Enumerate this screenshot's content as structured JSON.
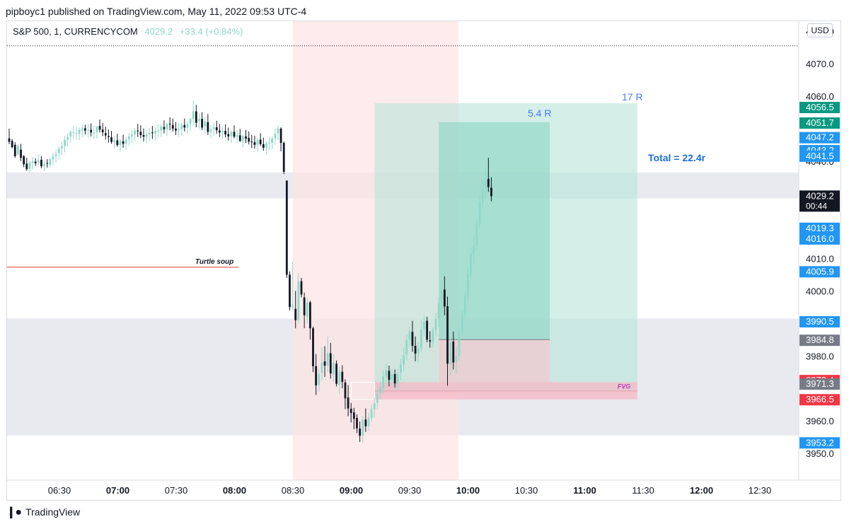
{
  "header": {
    "publish_line": "pipboyc1 published on TradingView.com, May 11, 2022 09:53 UTC-4"
  },
  "symbol": {
    "name": "S&P 500, 1, CURRENCYCOM",
    "price": "4029.2",
    "change": "+33.4 (+0.84%)"
  },
  "currency_button": "USD",
  "footer": {
    "brand": "TradingView"
  },
  "colors": {
    "up": "#26a69a",
    "down": "#131722",
    "session": "#fde4e4",
    "zone": "#e8eaef",
    "profit": "#b7e4d9",
    "profit_dark": "#8fd6c4",
    "loss": "#f4c7cf",
    "accent_blue": "#2962ff",
    "fvg": "#b83ab8"
  },
  "chart_data": {
    "type": "candlestick",
    "title": "S&P 500, 1, CURRENCYCOM",
    "ylim": [
      3945,
      4085
    ],
    "time_ticks": [
      "06:30",
      "07:00",
      "07:30",
      "08:00",
      "08:30",
      "09:00",
      "09:30",
      "10:00",
      "10:30",
      "11:00",
      "11:30",
      "12:00",
      "12:30"
    ],
    "time_ticks_bold": [
      "07:00",
      "08:00",
      "09:00",
      "10:00",
      "11:00",
      "12:00"
    ],
    "price_ticks": [
      3950.0,
      3960.0,
      3970.0,
      3980.0,
      3990.0,
      4000.0,
      4010.0,
      4020.0,
      4030.0,
      4040.0,
      4050.0,
      4060.0,
      4070.0,
      4080.0
    ],
    "price_tick_labels": [
      "3950.0",
      "3960.0",
      "",
      "3980.0",
      "",
      "4000.0",
      "4010.0",
      "",
      "",
      "4040.0",
      "",
      "4060.0",
      "4070.0",
      "4080.0"
    ],
    "price_badges": [
      {
        "label": "4056.5",
        "price": 4056.5,
        "color": "#089981"
      },
      {
        "label": "4051.7",
        "price": 4051.7,
        "color": "#089981"
      },
      {
        "label": "4047.2",
        "price": 4047.2,
        "color": "#2196f3"
      },
      {
        "label": "4043.2",
        "price": 4043.2,
        "color": "#2196f3"
      },
      {
        "label": "4041.5",
        "price": 4041.5,
        "color": "#2196f3"
      },
      {
        "label": "4029.2",
        "price": 4029.2,
        "color": "#131722",
        "sub": "00:44"
      },
      {
        "label": "4019.3",
        "price": 4019.3,
        "color": "#2196f3"
      },
      {
        "label": "4016.0",
        "price": 4016.0,
        "color": "#2196f3"
      },
      {
        "label": "4005.9",
        "price": 4005.9,
        "color": "#2196f3"
      },
      {
        "label": "3990.5",
        "price": 3990.5,
        "color": "#2196f3"
      },
      {
        "label": "3984.8",
        "price": 3984.8,
        "color": "#787b86"
      },
      {
        "label": "3972.4",
        "price": 3972.4,
        "color": "#f23645"
      },
      {
        "label": "3971.3",
        "price": 3971.3,
        "color": "#787b86"
      },
      {
        "label": "3966.5",
        "price": 3966.5,
        "color": "#f23645"
      },
      {
        "label": "3953.2",
        "price": 3953.2,
        "color": "#2196f3"
      }
    ],
    "dotted_line_price": 4075.5,
    "zones": [
      {
        "top": 4036.5,
        "bottom": 4028.5
      },
      {
        "top": 3991.5,
        "bottom": 3955.5
      }
    ],
    "session_range": {
      "from": "08:30",
      "to": "09:55"
    },
    "annotations": {
      "turtle_soup": {
        "label": "Turtle soup",
        "price": 4007.3,
        "from": "06:00",
        "to": "08:03"
      },
      "fvg": {
        "label": "FVG",
        "top": 3971.9,
        "bottom": 3966.6
      },
      "r17": "17 R",
      "r54": "5.4 R",
      "total": "Total = 22.4r"
    },
    "long_positions": [
      {
        "entry": 3969.2,
        "target": 4057.8,
        "stop": 3968.6,
        "from": "09:12",
        "to": "11:27",
        "label": "17 R"
      },
      {
        "entry": 3985.0,
        "target": 4052.0,
        "stop": 3971.7,
        "from": "09:45",
        "to": "10:42",
        "label": "5.4 R"
      }
    ],
    "candles": [
      [
        4047.0,
        4050.0,
        4045.2,
        4045.9
      ],
      [
        4046.2,
        4046.8,
        4043.9,
        4044.3
      ],
      [
        4045.0,
        4045.8,
        4041.0,
        4041.5
      ],
      [
        4042.0,
        4045.2,
        4041.8,
        4044.6
      ],
      [
        4043.5,
        4045.3,
        4040.0,
        4041.0
      ],
      [
        4041.5,
        4041.9,
        4038.1,
        4039.0
      ],
      [
        4039.2,
        4041.0,
        4037.0,
        4037.5
      ],
      [
        4037.6,
        4040.1,
        4036.3,
        4039.6
      ],
      [
        4039.4,
        4041.3,
        4037.4,
        4040.0
      ],
      [
        4039.8,
        4040.9,
        4038.5,
        4039.3
      ],
      [
        4039.5,
        4042.1,
        4038.7,
        4040.3
      ],
      [
        4040.4,
        4041.5,
        4037.8,
        4038.4
      ],
      [
        4038.4,
        4040.0,
        4036.9,
        4039.1
      ],
      [
        4039.4,
        4040.6,
        4038.0,
        4039.3
      ],
      [
        4038.8,
        4041.1,
        4037.9,
        4040.6
      ],
      [
        4040.6,
        4042.6,
        4038.6,
        4041.5
      ],
      [
        4041.6,
        4043.5,
        4039.6,
        4042.2
      ],
      [
        4042.5,
        4044.5,
        4040.5,
        4043.8
      ],
      [
        4043.9,
        4045.9,
        4041.9,
        4044.6
      ],
      [
        4044.7,
        4047.8,
        4042.7,
        4046.5
      ],
      [
        4046.5,
        4048.5,
        4044.5,
        4047.4
      ],
      [
        4047.6,
        4049.6,
        4045.7,
        4049.0
      ],
      [
        4048.9,
        4050.9,
        4046.8,
        4048.9
      ],
      [
        4048.5,
        4050.5,
        4046.5,
        4048.6
      ],
      [
        4048.4,
        4050.4,
        4046.4,
        4049.6
      ],
      [
        4049.4,
        4051.4,
        4047.4,
        4050.1
      ],
      [
        4050.1,
        4051.2,
        4048.2,
        4049.4
      ],
      [
        4049.4,
        4051.4,
        4047.4,
        4049.5
      ],
      [
        4049.6,
        4051.6,
        4047.6,
        4048.8
      ],
      [
        4048.8,
        4050.8,
        4046.8,
        4048.8
      ],
      [
        4048.9,
        4050.9,
        4046.9,
        4050.6
      ],
      [
        4050.8,
        4052.8,
        4048.8,
        4049.7
      ],
      [
        4049.7,
        4051.7,
        4047.7,
        4048.9
      ],
      [
        4048.6,
        4050.6,
        4046.6,
        4047.9
      ],
      [
        4047.7,
        4049.7,
        4045.7,
        4047.4
      ],
      [
        4047.3,
        4049.3,
        4045.3,
        4045.9
      ],
      [
        4045.8,
        4047.8,
        4043.8,
        4046.4
      ],
      [
        4046.4,
        4048.4,
        4044.4,
        4044.9
      ],
      [
        4044.9,
        4046.9,
        4042.9,
        4046.2
      ],
      [
        4046.1,
        4048.1,
        4044.1,
        4045.3
      ],
      [
        4045.4,
        4047.4,
        4043.4,
        4046.6
      ],
      [
        4046.7,
        4048.7,
        4044.7,
        4047.6
      ],
      [
        4047.6,
        4049.6,
        4045.6,
        4048.2
      ],
      [
        4048.2,
        4050.2,
        4046.2,
        4049.4
      ],
      [
        4049.4,
        4051.4,
        4047.4,
        4049.2
      ],
      [
        4049.0,
        4051.0,
        4047.0,
        4048.0
      ],
      [
        4048.0,
        4050.0,
        4046.0,
        4047.5
      ],
      [
        4047.5,
        4049.5,
        4045.5,
        4048.2
      ],
      [
        4048.2,
        4050.2,
        4046.2,
        4048.7
      ],
      [
        4048.8,
        4050.8,
        4046.8,
        4048.6
      ],
      [
        4048.4,
        4050.4,
        4046.4,
        4049.3
      ],
      [
        4049.4,
        4051.4,
        4047.4,
        4049.4
      ],
      [
        4049.4,
        4051.4,
        4047.4,
        4050.6
      ],
      [
        4050.5,
        4052.5,
        4048.5,
        4049.8
      ],
      [
        4049.7,
        4051.7,
        4047.7,
        4051.5
      ],
      [
        4051.5,
        4053.5,
        4049.5,
        4051.3
      ],
      [
        4051.1,
        4053.1,
        4049.1,
        4050.0
      ],
      [
        4050.0,
        4052.0,
        4048.0,
        4049.4
      ],
      [
        4049.5,
        4051.5,
        4047.5,
        4049.8
      ],
      [
        4049.8,
        4051.8,
        4047.8,
        4051.2
      ],
      [
        4051.1,
        4053.1,
        4049.1,
        4050.3
      ],
      [
        4050.3,
        4052.3,
        4048.3,
        4051.4
      ],
      [
        4051.4,
        4053.4,
        4049.4,
        4053.0
      ],
      [
        4053.0,
        4058.5,
        4051.0,
        4055.3
      ],
      [
        4055.3,
        4057.3,
        4050.4,
        4051.8
      ],
      [
        4052.3,
        4054.6,
        4050.0,
        4053.0
      ],
      [
        4053.0,
        4055.0,
        4049.5,
        4050.3
      ],
      [
        4050.6,
        4053.5,
        4048.5,
        4052.2
      ],
      [
        4052.0,
        4054.5,
        4048.0,
        4049.0
      ],
      [
        4049.0,
        4051.0,
        4047.0,
        4049.8
      ],
      [
        4049.8,
        4051.8,
        4047.8,
        4050.4
      ],
      [
        4050.4,
        4052.4,
        4048.4,
        4049.5
      ],
      [
        4049.4,
        4051.4,
        4047.4,
        4048.8
      ],
      [
        4048.8,
        4050.8,
        4046.8,
        4049.2
      ],
      [
        4049.3,
        4051.3,
        4047.3,
        4048.2
      ],
      [
        4048.3,
        4050.3,
        4046.3,
        4047.6
      ],
      [
        4047.6,
        4049.6,
        4045.6,
        4049.0
      ],
      [
        4049.0,
        4051.0,
        4047.0,
        4047.5
      ],
      [
        4047.5,
        4049.5,
        4045.5,
        4048.0
      ],
      [
        4047.9,
        4049.9,
        4045.9,
        4046.2
      ],
      [
        4046.2,
        4048.2,
        4044.2,
        4047.7
      ],
      [
        4047.6,
        4049.6,
        4045.6,
        4046.9
      ],
      [
        4047.1,
        4049.1,
        4045.1,
        4046.0
      ],
      [
        4046.0,
        4048.0,
        4044.0,
        4045.8
      ],
      [
        4045.8,
        4047.8,
        4043.8,
        4045.0
      ],
      [
        4045.0,
        4047.0,
        4043.0,
        4046.6
      ],
      [
        4046.6,
        4048.6,
        4044.6,
        4045.2
      ],
      [
        4045.2,
        4047.2,
        4043.2,
        4044.1
      ],
      [
        4044.1,
        4046.1,
        4042.1,
        4045.4
      ],
      [
        4045.4,
        4047.4,
        4043.4,
        4045.6
      ],
      [
        4045.6,
        4047.6,
        4043.6,
        4047.0
      ],
      [
        4047.0,
        4050.0,
        4045.0,
        4048.4
      ],
      [
        4048.5,
        4051.0,
        4046.5,
        4050.0
      ],
      [
        4050.0,
        4050.4,
        4043.0,
        4045.6
      ],
      [
        4045.6,
        4046.0,
        4036.0,
        4036.7
      ],
      [
        4034.0,
        4034.0,
        4004.0,
        4005.0
      ],
      [
        4005.0,
        4006.0,
        3994.0,
        3995.0
      ],
      [
        3995.0,
        4009.0,
        3994.0,
        3995.5
      ],
      [
        3994.5,
        4000.0,
        3988.5,
        3991.0
      ],
      [
        3991.0,
        4005.5,
        3990.0,
        4003.0
      ],
      [
        4003.0,
        4004.0,
        3998.0,
        3998.9
      ],
      [
        3998.0,
        3999.5,
        3988.5,
        3992.5
      ],
      [
        3992.0,
        3998.0,
        3990.0,
        3996.5
      ],
      [
        3996.5,
        3997.0,
        3985.0,
        3988.5
      ],
      [
        3988.5,
        3989.0,
        3975.0,
        3976.8
      ],
      [
        3976.8,
        3980.6,
        3968.0,
        3970.9
      ],
      [
        3971.0,
        3976.0,
        3969.0,
        3974.5
      ],
      [
        3974.8,
        3982.6,
        3972.5,
        3977.9
      ],
      [
        3978.3,
        3983.0,
        3973.5,
        3977.0
      ],
      [
        3977.0,
        3986.0,
        3975.0,
        3981.0
      ],
      [
        3980.8,
        3984.0,
        3973.0,
        3974.6
      ],
      [
        3974.3,
        3980.5,
        3972.0,
        3977.9
      ],
      [
        3977.6,
        3978.6,
        3970.6,
        3971.4
      ],
      [
        3971.1,
        3976.5,
        3968.1,
        3975.2
      ],
      [
        3975.1,
        3977.1,
        3970.0,
        3972.0
      ],
      [
        3971.8,
        3972.8,
        3963.6,
        3966.9
      ],
      [
        3967.2,
        3971.0,
        3961.4,
        3963.8
      ],
      [
        3963.7,
        3965.5,
        3959.5,
        3962.4
      ],
      [
        3962.6,
        3964.0,
        3957.4,
        3960.6
      ],
      [
        3960.9,
        3962.0,
        3956.2,
        3957.7
      ],
      [
        3957.6,
        3959.8,
        3953.5,
        3955.4
      ],
      [
        3955.5,
        3961.5,
        3953.2,
        3960.3
      ],
      [
        3960.4,
        3963.8,
        3956.6,
        3958.3
      ],
      [
        3958.3,
        3962.5,
        3957.0,
        3960.9
      ],
      [
        3960.8,
        3965.0,
        3959.8,
        3963.6
      ],
      [
        3963.6,
        3967.0,
        3961.0,
        3965.5
      ],
      [
        3965.6,
        3969.6,
        3963.6,
        3968.4
      ],
      [
        3968.6,
        3972.1,
        3966.6,
        3970.2
      ],
      [
        3970.2,
        3975.4,
        3968.2,
        3973.6
      ],
      [
        3973.6,
        3977.8,
        3971.4,
        3975.5
      ],
      [
        3975.4,
        3977.0,
        3970.6,
        3972.6
      ],
      [
        3972.6,
        3976.0,
        3970.8,
        3974.4
      ],
      [
        3974.4,
        3975.8,
        3970.2,
        3971.5
      ],
      [
        3971.4,
        3976.0,
        3969.5,
        3974.6
      ],
      [
        3974.8,
        3979.0,
        3972.5,
        3977.3
      ],
      [
        3977.3,
        3982.6,
        3975.4,
        3980.3
      ],
      [
        3980.4,
        3986.6,
        3978.5,
        3984.9
      ],
      [
        3985.0,
        3989.0,
        3982.6,
        3987.5
      ],
      [
        3987.4,
        3990.8,
        3981.3,
        3983.1
      ],
      [
        3983.1,
        3986.0,
        3978.3,
        3980.7
      ],
      [
        3980.8,
        3984.0,
        3978.0,
        3982.3
      ],
      [
        3982.4,
        3991.2,
        3981.2,
        3988.2
      ],
      [
        3988.1,
        3992.4,
        3986.0,
        3990.6
      ],
      [
        3990.8,
        3992.0,
        3984.2,
        3985.0
      ],
      [
        3984.8,
        3987.6,
        3982.5,
        3984.4
      ],
      [
        3984.2,
        3988.8,
        3982.6,
        3987.8
      ],
      [
        3987.9,
        3993.2,
        3986.0,
        3991.4
      ],
      [
        3991.5,
        3998.0,
        3989.0,
        3996.3
      ],
      [
        3996.3,
        4003.0,
        3993.0,
        4000.2
      ],
      [
        4000.4,
        4004.5,
        3992.5,
        3995.2
      ],
      [
        3995.3,
        3998.2,
        3970.8,
        3977.6
      ],
      [
        3977.4,
        3986.0,
        3974.0,
        3984.3
      ],
      [
        3984.4,
        3987.5,
        3975.8,
        3978.0
      ],
      [
        3978.0,
        3982.8,
        3974.4,
        3980.0
      ],
      [
        3980.0,
        3988.4,
        3978.5,
        3987.2
      ],
      [
        3987.4,
        3994.0,
        3986.0,
        3992.6
      ],
      [
        3992.7,
        4000.0,
        3991.5,
        3998.6
      ],
      [
        3998.5,
        4007.0,
        3996.4,
        4005.0
      ],
      [
        4005.0,
        4013.2,
        4004.0,
        4011.4
      ],
      [
        4011.5,
        4016.8,
        4008.6,
        4013.9
      ],
      [
        4014.0,
        4022.0,
        4012.4,
        4020.5
      ],
      [
        4020.8,
        4029.5,
        4019.5,
        4027.6
      ],
      [
        4027.6,
        4034.2,
        4025.5,
        4031.4
      ],
      [
        4031.5,
        4038.0,
        4028.5,
        4034.0
      ],
      [
        4034.5,
        4041.0,
        4030.5,
        4032.0
      ],
      [
        4031.8,
        4035.0,
        4027.6,
        4029.2
      ]
    ]
  }
}
